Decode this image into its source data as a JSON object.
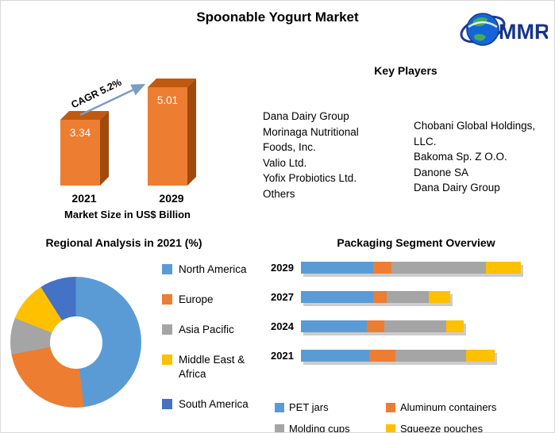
{
  "title": "Spoonable Yogurt Market",
  "logo": {
    "text": "MMR"
  },
  "key_players": {
    "heading": "Key Players",
    "column1": "Dana Dairy Group\nMorinaga Nutritional\nFoods, Inc.\nValio Ltd.\nYofix Probiotics Ltd.\nOthers",
    "column2": "Chobani Global Holdings,\nLLC.\nBakoma Sp. Z O.O.\nDanone SA\nDana Dairy Group"
  },
  "chart_data": [
    {
      "type": "bar",
      "title": "Market Size in US$ Billion",
      "categories": [
        "2021",
        "2029"
      ],
      "values": [
        3.34,
        5.01
      ],
      "annotation": "CAGR 5.2%",
      "bar_color": "#ED7D31",
      "ylim": [
        0,
        5.5
      ]
    },
    {
      "type": "pie",
      "subtype": "donut",
      "title": "Regional Analysis in 2021 (%)",
      "labels": [
        "North America",
        "Europe",
        "Asia Pacific",
        "Middle East & Africa",
        "South America"
      ],
      "values": [
        48,
        24,
        9,
        10,
        9
      ],
      "colors": [
        "#5B9BD5",
        "#ED7D31",
        "#A5A5A5",
        "#FFC000",
        "#4472C4"
      ],
      "legend_position": "right"
    },
    {
      "type": "bar",
      "subtype": "stacked-horizontal",
      "title": "Packaging Segment Overview",
      "categories": [
        "2029",
        "2027",
        "2024",
        "2021"
      ],
      "series": [
        {
          "name": "PET jars",
          "color": "#5B9BD5",
          "values": [
            33,
            33,
            30,
            31
          ]
        },
        {
          "name": "Aluminum containers",
          "color": "#ED7D31",
          "values": [
            8,
            6,
            8,
            12
          ]
        },
        {
          "name": "Molding cups",
          "color": "#A5A5A5",
          "values": [
            43,
            19,
            28,
            32
          ]
        },
        {
          "name": "Squeeze pouches",
          "color": "#FFC000",
          "values": [
            16,
            10,
            8,
            13
          ]
        }
      ],
      "xmax": 100,
      "legend_position": "bottom"
    }
  ]
}
